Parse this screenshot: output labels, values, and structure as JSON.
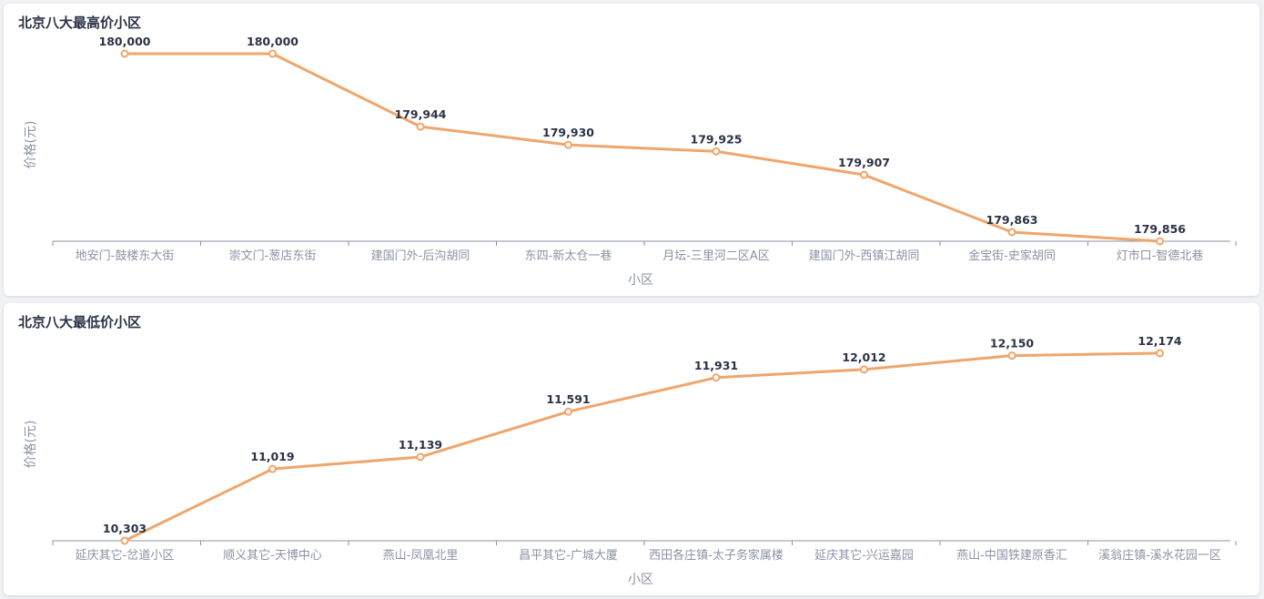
{
  "charts": [
    {
      "title": "北京八大最高价小区",
      "chart_data": {
        "type": "line",
        "categories": [
          "地安门-鼓楼东大街",
          "崇文门-葱店东街",
          "建国门外-后沟胡同",
          "东四-新太仓一巷",
          "月坛-三里河二区A区",
          "建国门外-西镇江胡同",
          "金宝街-史家胡同",
          "灯市口-智德北巷"
        ],
        "values": [
          180000,
          180000,
          179944,
          179930,
          179925,
          179907,
          179863,
          179856
        ],
        "value_labels": [
          "180,000",
          "180,000",
          "179,944",
          "179,930",
          "179,925",
          "179,907",
          "179,863",
          "179,856"
        ],
        "xlabel": "小区",
        "ylabel": "价格(元)",
        "ylim": [
          179856,
          180000
        ],
        "grid": false,
        "line_color": "#f0a56b"
      }
    },
    {
      "title": "北京八大最低价小区",
      "chart_data": {
        "type": "line",
        "categories": [
          "延庆其它-岔道小区",
          "顺义其它-天博中心",
          "燕山-凤凰北里",
          "昌平其它-广城大厦",
          "西田各庄镇-太子务家属楼",
          "延庆其它-兴运嘉园",
          "燕山-中国铁建原香汇",
          "溪翁庄镇-溪水花园一区"
        ],
        "values": [
          10303,
          11019,
          11139,
          11591,
          11931,
          12012,
          12150,
          12174
        ],
        "value_labels": [
          "10,303",
          "11,019",
          "11,139",
          "11,591",
          "11,931",
          "12,012",
          "12,150",
          "12,174"
        ],
        "xlabel": "小区",
        "ylabel": "价格(元)",
        "ylim": [
          10303,
          12174
        ],
        "grid": false,
        "line_color": "#f0a56b"
      }
    }
  ]
}
